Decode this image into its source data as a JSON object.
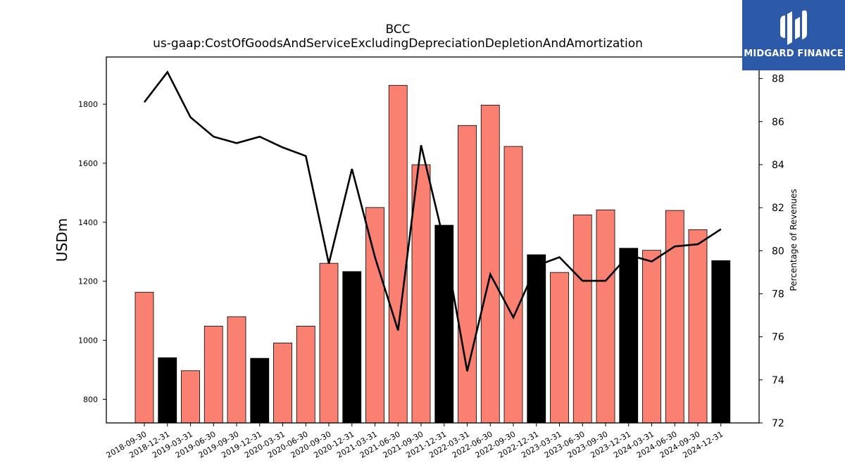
{
  "chart_data": {
    "type": "bar",
    "title": "BCC",
    "subtitle": "us-gaap:CostOfGoodsAndServiceExcludingDepreciationDepletionAndAmortization",
    "ylabel": "USDm",
    "y2label": "Percentage of Revenues",
    "ylim": [
      720,
      1960
    ],
    "y2lim": [
      72,
      89
    ],
    "yticks": [
      800,
      1000,
      1200,
      1400,
      1600,
      1800
    ],
    "y2ticks": [
      72,
      74,
      76,
      78,
      80,
      82,
      84,
      86,
      88
    ],
    "categories": [
      "2018-09-30",
      "2018-12-31",
      "2019-03-31",
      "2019-06-30",
      "2019-09-30",
      "2019-12-31",
      "2020-03-31",
      "2020-06-30",
      "2020-09-30",
      "2020-12-31",
      "2021-03-31",
      "2021-06-30",
      "2021-09-30",
      "2021-12-31",
      "2022-03-31",
      "2022-06-30",
      "2022-09-30",
      "2022-12-31",
      "2023-03-31",
      "2023-06-30",
      "2023-09-30",
      "2023-12-31",
      "2024-03-31",
      "2024-06-30",
      "2024-09-30",
      "2024-12-31"
    ],
    "series": [
      {
        "type": "bar",
        "values": [
          1163,
          941,
          897,
          1048,
          1080,
          939,
          991,
          1048,
          1261,
          1233,
          1450,
          1864,
          1595,
          1390,
          1728,
          1797,
          1657,
          1290,
          1230,
          1425,
          1442,
          1312,
          1305,
          1440,
          1375,
          1270
        ]
      },
      {
        "type": "line",
        "axis": "right",
        "values": [
          86.9,
          88.3,
          86.2,
          85.3,
          85.0,
          85.3,
          84.8,
          84.4,
          79.4,
          83.8,
          79.7,
          76.3,
          84.9,
          80.4,
          74.4,
          78.9,
          76.9,
          79.3,
          79.7,
          78.6,
          78.6,
          79.8,
          79.5,
          80.2,
          80.3,
          81.0
        ]
      }
    ],
    "bar_colors": {
      "quarter": "#fa8072",
      "year_end": "#000000"
    },
    "year_end_flags": [
      false,
      true,
      false,
      false,
      false,
      true,
      false,
      false,
      false,
      true,
      false,
      false,
      false,
      true,
      false,
      false,
      false,
      true,
      false,
      false,
      false,
      true,
      false,
      false,
      false,
      true
    ],
    "line_color": "#000000",
    "grid": false
  },
  "logo": {
    "text": "MIDGARD FINANCE",
    "color": "#2d5aa8"
  }
}
